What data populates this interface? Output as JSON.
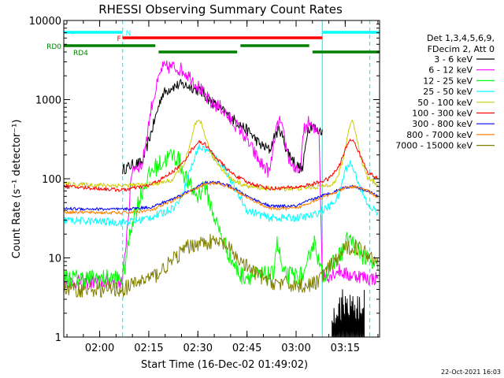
{
  "chart_data": {
    "type": "line",
    "title": "RHESSI Observing Summary Count Rates",
    "xlabel": "Start Time (16-Dec-02 01:49:02)",
    "ylabel": "Count Rate (s⁻¹ detector⁻¹)",
    "y_scale": "log",
    "ylim": [
      1,
      10000
    ],
    "xlim": [
      "01:49:02",
      "03:25:30"
    ],
    "x_unit": "UT time",
    "yticks": [
      1,
      10,
      100,
      1000,
      10000
    ],
    "ytick_labels": [
      "1",
      "10",
      "100",
      "1000",
      "10000"
    ],
    "xtick_labels": [
      "02:00",
      "02:15",
      "02:30",
      "02:45",
      "03:00",
      "03:15"
    ],
    "legend_header": [
      "Det 1,3,4,5,6,9,",
      "FDecim 2, Att 0"
    ],
    "legend_position": "right",
    "footer_date": "22-Oct-2021 16:03",
    "flags": [
      {
        "label": "N",
        "color": "#00ffff",
        "label_color": "#00ffff",
        "segments": [
          [
            "01:49:02",
            "02:07:00"
          ],
          [
            "03:08:00",
            "03:25:30"
          ]
        ]
      },
      {
        "label": "F",
        "color": "#ff0000",
        "label_color": "#ff0000",
        "segments": [
          [
            "02:07:00",
            "03:08:00"
          ]
        ]
      },
      {
        "label": "RD0",
        "color": "#008000",
        "label_color": "#008000",
        "segments": [
          [
            "01:49:02",
            "02:17:00"
          ],
          [
            "02:43:00",
            "03:04:00"
          ]
        ]
      },
      {
        "label": "RD4",
        "color": "#008000",
        "label_color": "#008000",
        "segments": [
          [
            "02:18:00",
            "02:42:00"
          ],
          [
            "03:05:00",
            "03:25:30"
          ]
        ]
      }
    ],
    "event_lines": [
      {
        "color": "#00ffff",
        "style": "dashed",
        "x": "02:07:00"
      },
      {
        "color": "#00ffff",
        "style": "dashed",
        "x": "03:22:30"
      },
      {
        "color": "#00ffff",
        "style": "solid",
        "x": "03:08:00"
      }
    ],
    "series": [
      {
        "name": "3 - 6 keV",
        "color": "#000000",
        "noise": 0.07,
        "x": [
          "02:07:00",
          "02:10:00",
          "02:13:00",
          "02:16:00",
          "02:19:00",
          "02:22:00",
          "02:25:00",
          "02:28:00",
          "02:31:00",
          "02:34:00",
          "02:37:00",
          "02:40:00",
          "02:43:00",
          "02:46:00",
          "02:49:00",
          "02:52:00",
          "02:53:30",
          "02:55:00",
          "02:57:00",
          "03:00:00",
          "03:02:00",
          "03:03:30",
          "03:05:00",
          "03:06:30",
          "03:08:00"
        ],
        "values": [
          130,
          150,
          160,
          420,
          1150,
          1450,
          1550,
          1450,
          1250,
          950,
          750,
          600,
          480,
          380,
          270,
          230,
          350,
          430,
          240,
          150,
          130,
          420,
          480,
          400,
          420
        ]
      },
      {
        "name": "6 - 12 keV",
        "color": "#ff00ff",
        "noise": 0.09,
        "x": [
          "01:49:02",
          "02:07:00",
          "02:10:00",
          "02:13:00",
          "02:16:00",
          "02:19:00",
          "02:22:00",
          "02:25:00",
          "02:28:00",
          "02:31:00",
          "02:34:00",
          "02:37:00",
          "02:40:00",
          "02:43:00",
          "02:46:00",
          "02:49:00",
          "02:52:00",
          "02:53:30",
          "02:55:00",
          "02:58:00",
          "03:01:00",
          "03:02:30",
          "03:04:00",
          "03:05:30",
          "03:07:00",
          "03:08:00",
          "03:10:00",
          "03:13:00",
          "03:16:00",
          "03:19:00",
          "03:22:00",
          "03:25:00"
        ],
        "values": [
          5,
          5,
          140,
          150,
          900,
          2500,
          2600,
          2400,
          1900,
          1300,
          900,
          800,
          550,
          420,
          260,
          160,
          120,
          350,
          550,
          170,
          110,
          420,
          520,
          400,
          430,
          6,
          6,
          7,
          6,
          6,
          5.5,
          5.5
        ]
      },
      {
        "name": "12 - 25 keV",
        "color": "#00ff00",
        "noise": 0.12,
        "x": [
          "01:49:02",
          "02:07:00",
          "02:10:00",
          "02:13:00",
          "02:16:00",
          "02:19:00",
          "02:22:00",
          "02:24:00",
          "02:26:00",
          "02:28:00",
          "02:30:00",
          "02:32:00",
          "02:34:00",
          "02:36:00",
          "02:38:00",
          "02:40:00",
          "02:43:00",
          "02:46:00",
          "02:50:00",
          "02:53:00",
          "02:54:00",
          "02:55:00",
          "02:56:00",
          "03:00:00",
          "03:03:00",
          "03:04:30",
          "03:06:00",
          "03:07:00",
          "03:08:00",
          "03:11:00",
          "03:14:00",
          "03:16:00",
          "03:18:00",
          "03:21:00",
          "03:25:00"
        ],
        "values": [
          5.5,
          5.5,
          30,
          70,
          130,
          160,
          200,
          180,
          110,
          75,
          60,
          85,
          45,
          25,
          16,
          10,
          6,
          6,
          6,
          6,
          16,
          11,
          6,
          6,
          6,
          14,
          16,
          8,
          6,
          8,
          12,
          18,
          14,
          10,
          7
        ]
      },
      {
        "name": "25 - 50 keV",
        "color": "#00ffff",
        "noise": 0.05,
        "x": [
          "01:49:02",
          "01:58:00",
          "02:07:00",
          "02:12:00",
          "02:16:00",
          "02:20:00",
          "02:23:00",
          "02:25:00",
          "02:27:00",
          "02:29:00",
          "02:30:00",
          "02:32:00",
          "02:34:00",
          "02:36:00",
          "02:38:00",
          "02:41:00",
          "02:45:00",
          "02:52:00",
          "03:00:00",
          "03:05:00",
          "03:07:00",
          "03:08:00",
          "03:10:00",
          "03:13:00",
          "03:15:00",
          "03:16:30",
          "03:18:00",
          "03:20:00",
          "03:22:00",
          "03:25:00"
        ],
        "values": [
          30,
          29,
          28,
          30,
          33,
          38,
          45,
          60,
          110,
          180,
          250,
          240,
          210,
          170,
          140,
          80,
          40,
          32,
          32,
          34,
          38,
          40,
          44,
          60,
          130,
          160,
          120,
          70,
          45,
          38
        ]
      },
      {
        "name": "50 - 100 keV",
        "color": "#cccc00",
        "noise": 0.03,
        "x": [
          "01:49:02",
          "02:07:00",
          "02:15:00",
          "02:22:00",
          "02:26:00",
          "02:28:00",
          "02:29:00",
          "02:30:00",
          "02:31:00",
          "02:32:00",
          "02:34:00",
          "02:37:00",
          "02:40:00",
          "02:45:00",
          "02:52:00",
          "03:00:00",
          "03:08:00",
          "03:12:00",
          "03:14:00",
          "03:16:00",
          "03:17:00",
          "03:18:00",
          "03:20:00",
          "03:22:00",
          "03:25:00"
        ],
        "values": [
          85,
          82,
          84,
          95,
          160,
          300,
          480,
          520,
          500,
          380,
          200,
          140,
          100,
          80,
          75,
          75,
          80,
          90,
          150,
          400,
          560,
          420,
          170,
          100,
          85
        ]
      },
      {
        "name": "100 - 300 keV",
        "color": "#ff0000",
        "noise": 0.025,
        "x": [
          "01:49:02",
          "01:58:00",
          "02:07:00",
          "02:15:00",
          "02:20:00",
          "02:25:00",
          "02:28:00",
          "02:30:00",
          "02:32:00",
          "02:34:00",
          "02:37:00",
          "02:40:00",
          "02:45:00",
          "02:52:00",
          "03:00:00",
          "03:05:00",
          "03:10:00",
          "03:13:00",
          "03:15:00",
          "03:16:30",
          "03:18:00",
          "03:20:00",
          "03:22:00",
          "03:25:00"
        ],
        "values": [
          80,
          76,
          72,
          82,
          105,
          150,
          230,
          290,
          280,
          220,
          160,
          120,
          90,
          75,
          78,
          85,
          100,
          140,
          230,
          320,
          280,
          180,
          120,
          100
        ]
      },
      {
        "name": "300 - 800 keV",
        "color": "#0000ff",
        "noise": 0.02,
        "x": [
          "01:49:02",
          "02:07:00",
          "02:16:00",
          "02:22:00",
          "02:28:00",
          "02:32:00",
          "02:36:00",
          "02:40:00",
          "02:45:00",
          "02:52:00",
          "03:00:00",
          "03:05:00",
          "03:10:00",
          "03:15:00",
          "03:18:00",
          "03:22:00",
          "03:25:00"
        ],
        "values": [
          42,
          41,
          44,
          55,
          72,
          88,
          90,
          80,
          60,
          45,
          45,
          55,
          65,
          78,
          80,
          70,
          60
        ]
      },
      {
        "name": "800 - 7000 keV",
        "color": "#ff8000",
        "noise": 0.02,
        "x": [
          "01:49:02",
          "02:07:00",
          "02:16:00",
          "02:22:00",
          "02:28:00",
          "02:32:00",
          "02:36:00",
          "02:40:00",
          "02:45:00",
          "02:52:00",
          "03:00:00",
          "03:05:00",
          "03:10:00",
          "03:15:00",
          "03:18:00",
          "03:22:00",
          "03:25:00"
        ],
        "values": [
          38,
          37,
          40,
          52,
          70,
          85,
          88,
          78,
          58,
          42,
          42,
          52,
          62,
          76,
          80,
          70,
          58
        ]
      },
      {
        "name": "7000 - 15000 keV",
        "color": "#808000",
        "noise": 0.1,
        "x": [
          "01:49:02",
          "02:07:00",
          "02:12:00",
          "02:17:00",
          "02:22:00",
          "02:26:00",
          "02:30:00",
          "02:34:00",
          "02:38:00",
          "02:42:00",
          "02:46:00",
          "02:52:00",
          "03:00:00",
          "03:05:00",
          "03:08:00",
          "03:12:00",
          "03:15:00",
          "03:18:00",
          "03:21:00",
          "03:25:00"
        ],
        "values": [
          4,
          4,
          5,
          6,
          9,
          13,
          15.5,
          16,
          15,
          10,
          7,
          5,
          4.5,
          4.5,
          6,
          9,
          13,
          14,
          12,
          9
        ]
      },
      {
        "name": "",
        "color": "#000000",
        "noise": 0,
        "spiky": true,
        "x": [
          "03:11:00",
          "03:21:00"
        ],
        "values": [
          1.5,
          4
        ]
      }
    ]
  }
}
